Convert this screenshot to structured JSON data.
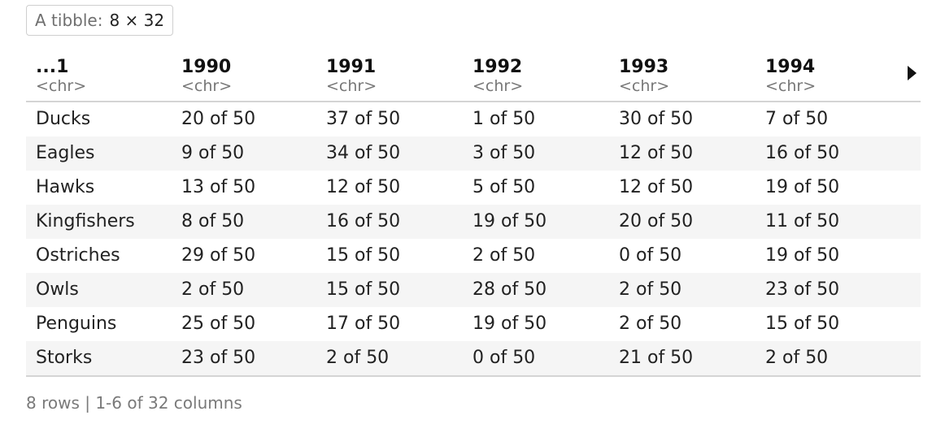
{
  "badge": {
    "label": "A tibble:",
    "dims": "8 × 32"
  },
  "table": {
    "columns": [
      {
        "name": "...1",
        "type": "<chr>"
      },
      {
        "name": "1990",
        "type": "<chr>"
      },
      {
        "name": "1991",
        "type": "<chr>"
      },
      {
        "name": "1992",
        "type": "<chr>"
      },
      {
        "name": "1993",
        "type": "<chr>"
      },
      {
        "name": "1994",
        "type": "<chr>"
      }
    ],
    "rows": [
      [
        "Ducks",
        "20 of 50",
        "37 of 50",
        "1 of 50",
        "30 of 50",
        "7 of 50"
      ],
      [
        "Eagles",
        "9 of 50",
        "34 of 50",
        "3 of 50",
        "12 of 50",
        "16 of 50"
      ],
      [
        "Hawks",
        "13 of 50",
        "12 of 50",
        "5 of 50",
        "12 of 50",
        "19 of 50"
      ],
      [
        "Kingfishers",
        "8 of 50",
        "16 of 50",
        "19 of 50",
        "20 of 50",
        "11 of 50"
      ],
      [
        "Ostriches",
        "29 of 50",
        "15 of 50",
        "2 of 50",
        "0 of 50",
        "19 of 50"
      ],
      [
        "Owls",
        "2 of 50",
        "15 of 50",
        "28 of 50",
        "2 of 50",
        "23 of 50"
      ],
      [
        "Penguins",
        "25 of 50",
        "17 of 50",
        "19 of 50",
        "2 of 50",
        "15 of 50"
      ],
      [
        "Storks",
        "23 of 50",
        "2 of 50",
        "0 of 50",
        "21 of 50",
        "2 of 50"
      ]
    ]
  },
  "footer": {
    "summary": "8 rows | 1-6 of 32 columns"
  },
  "icons": {
    "next_columns": "triangle-right-icon"
  },
  "colors": {
    "alt_row": "#f5f5f5",
    "border": "#d4d4d4",
    "muted_text": "#777777"
  }
}
